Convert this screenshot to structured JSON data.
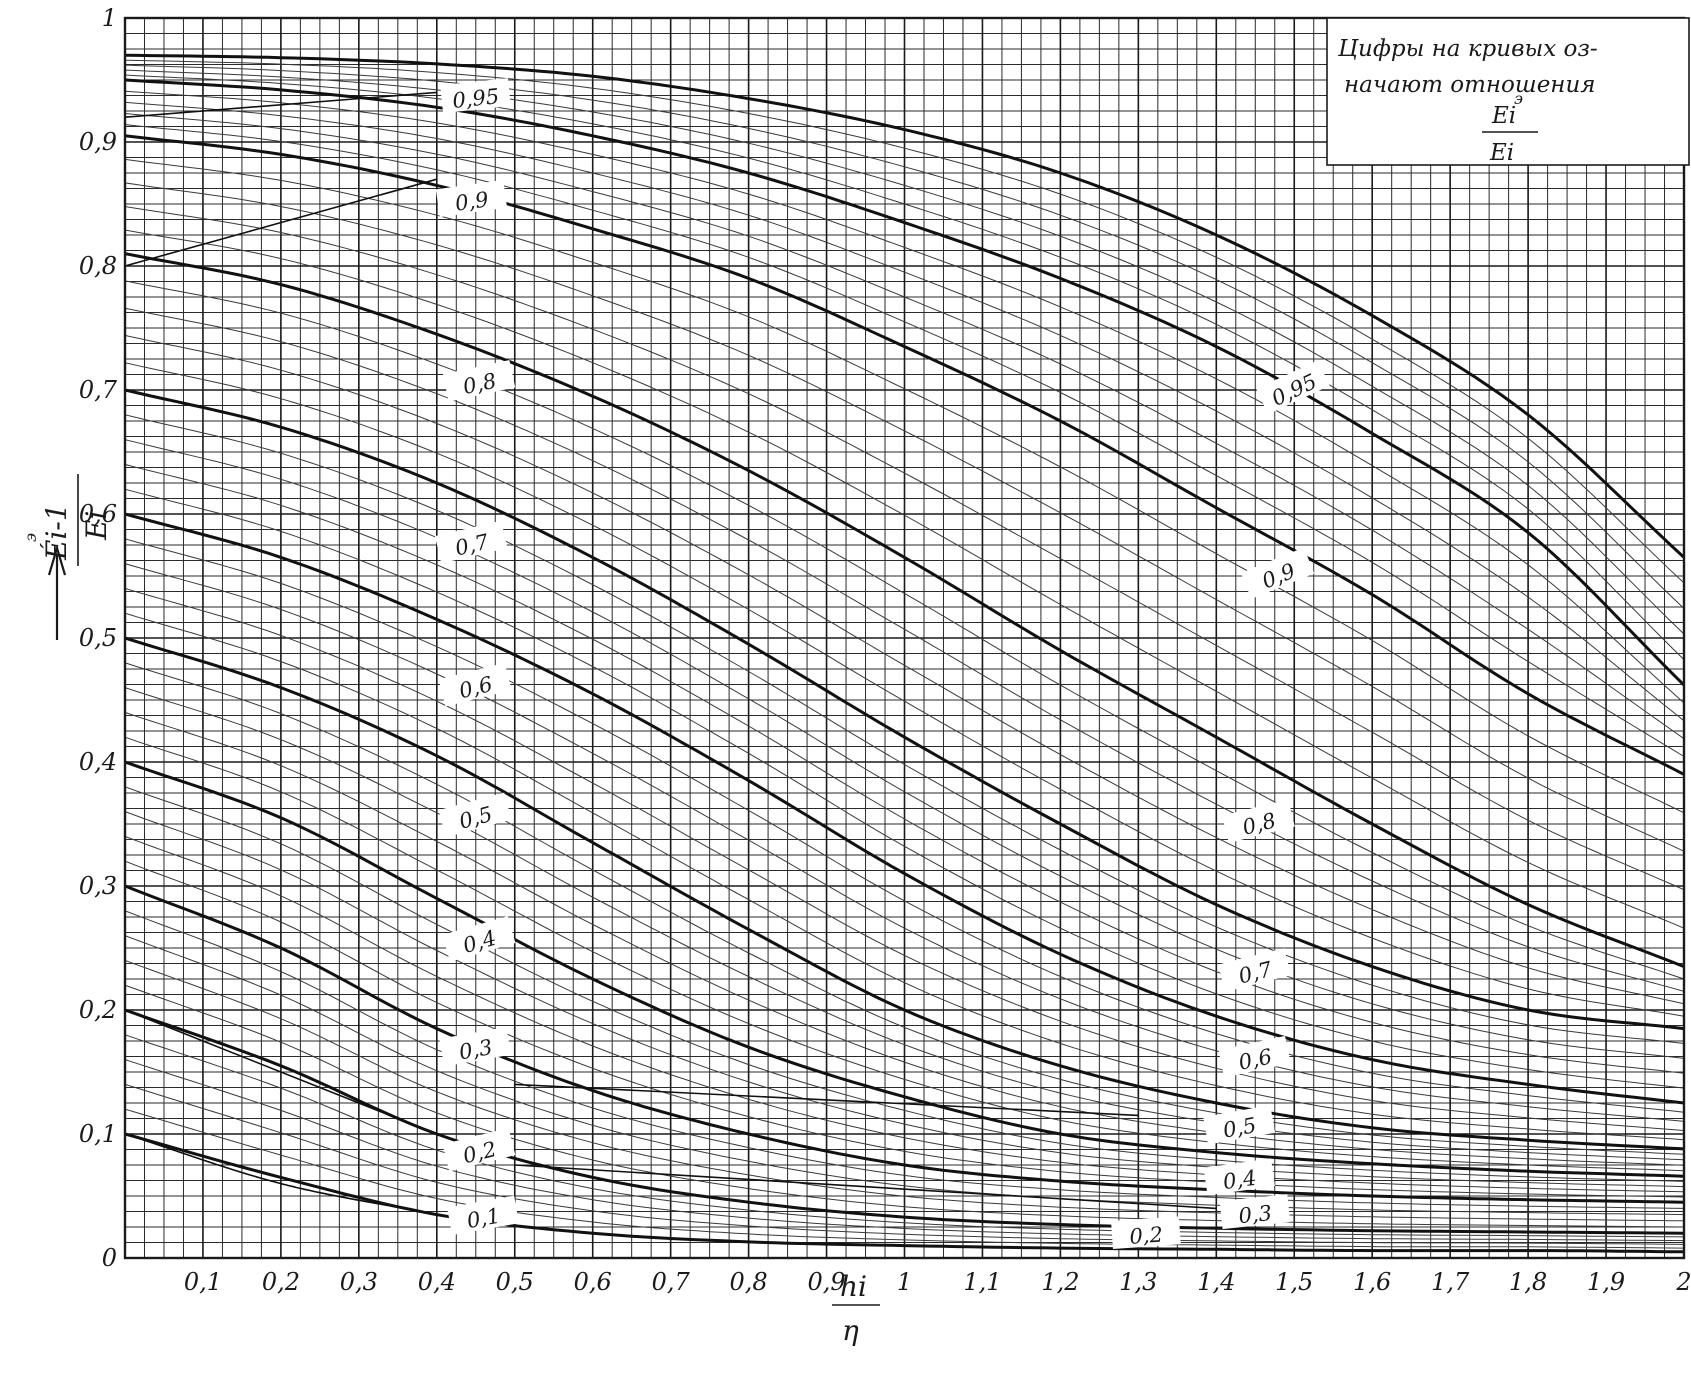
{
  "chart_data": {
    "type": "line",
    "xlabel": {
      "num": "hi",
      "den": "η"
    },
    "ylabel": {
      "num": "Éi-1",
      "den": "Ei",
      "sup": "э"
    },
    "xlim": [
      0,
      2
    ],
    "ylim": [
      0,
      1
    ],
    "grid": true,
    "legend_position": "top-right",
    "legend_lines": [
      "Цифры на кривых оз-",
      "начают  отношения"
    ],
    "legend_fraction": {
      "num": "Ei",
      "den": "Ei",
      "sup": "э"
    },
    "x_ticks": [
      {
        "v": 0.1,
        "t": "0,1"
      },
      {
        "v": 0.2,
        "t": "0,2"
      },
      {
        "v": 0.3,
        "t": "0,3"
      },
      {
        "v": 0.4,
        "t": "0,4"
      },
      {
        "v": 0.5,
        "t": "0,5"
      },
      {
        "v": 0.6,
        "t": "0,6"
      },
      {
        "v": 0.7,
        "t": "0,7"
      },
      {
        "v": 0.8,
        "t": "0,8"
      },
      {
        "v": 0.9,
        "t": "0,9"
      },
      {
        "v": 1.0,
        "t": "1"
      },
      {
        "v": 1.1,
        "t": "1,1"
      },
      {
        "v": 1.2,
        "t": "1,2"
      },
      {
        "v": 1.3,
        "t": "1,3"
      },
      {
        "v": 1.4,
        "t": "1,4"
      },
      {
        "v": 1.5,
        "t": "1,5"
      },
      {
        "v": 1.6,
        "t": "1,6"
      },
      {
        "v": 1.7,
        "t": "1,7"
      },
      {
        "v": 1.8,
        "t": "1,8"
      },
      {
        "v": 1.9,
        "t": "1,9"
      },
      {
        "v": 2.0,
        "t": "2"
      }
    ],
    "y_ticks": [
      {
        "v": 0,
        "t": "0"
      },
      {
        "v": 0.1,
        "t": "0,1"
      },
      {
        "v": 0.2,
        "t": "0,2"
      },
      {
        "v": 0.3,
        "t": "0,3"
      },
      {
        "v": 0.4,
        "t": "0,4"
      },
      {
        "v": 0.5,
        "t": "0,5"
      },
      {
        "v": 0.6,
        "t": "0,6"
      },
      {
        "v": 0.7,
        "t": "0,7"
      },
      {
        "v": 0.8,
        "t": "0,8"
      },
      {
        "v": 0.9,
        "t": "0,9"
      },
      {
        "v": 1.0,
        "t": "1"
      }
    ],
    "series": [
      {
        "name": "0,95",
        "family": "A",
        "x": [
          0,
          0.2,
          0.4,
          0.6,
          0.8,
          1.0,
          1.2,
          1.4,
          1.6,
          1.8,
          2.0
        ],
        "y": [
          0.97,
          0.968,
          0.963,
          0.953,
          0.935,
          0.91,
          0.875,
          0.825,
          0.76,
          0.68,
          0.565
        ]
      },
      {
        "name": "0,95",
        "family": "A",
        "x": [
          0,
          0.2,
          0.4,
          0.6,
          0.8,
          1.0,
          1.2,
          1.4,
          1.6,
          1.8,
          2.0
        ],
        "y": [
          0.95,
          0.942,
          0.928,
          0.905,
          0.875,
          0.835,
          0.79,
          0.735,
          0.665,
          0.585,
          0.462
        ]
      },
      {
        "name": "0,9",
        "family": "A",
        "x": [
          0,
          0.2,
          0.4,
          0.6,
          0.8,
          1.0,
          1.2,
          1.4,
          1.6,
          1.8,
          2.0
        ],
        "y": [
          0.905,
          0.89,
          0.865,
          0.83,
          0.79,
          0.735,
          0.675,
          0.605,
          0.535,
          0.455,
          0.39
        ]
      },
      {
        "name": "0,8",
        "family": "A",
        "x": [
          0,
          0.2,
          0.4,
          0.6,
          0.8,
          1.0,
          1.2,
          1.4,
          1.6,
          1.8,
          2.0
        ],
        "y": [
          0.81,
          0.785,
          0.745,
          0.695,
          0.635,
          0.565,
          0.49,
          0.42,
          0.35,
          0.285,
          0.235
        ]
      },
      {
        "name": "0,7",
        "family": "A",
        "x": [
          0,
          0.2,
          0.4,
          0.6,
          0.8,
          1.0,
          1.2,
          1.4,
          1.6,
          1.8,
          2.0
        ],
        "y": [
          0.7,
          0.67,
          0.625,
          0.565,
          0.495,
          0.42,
          0.35,
          0.285,
          0.235,
          0.2,
          0.185
        ]
      },
      {
        "name": "0,6",
        "family": "A",
        "x": [
          0,
          0.2,
          0.4,
          0.6,
          0.8,
          1.0,
          1.2,
          1.4,
          1.6,
          1.8,
          2.0
        ],
        "y": [
          0.6,
          0.565,
          0.515,
          0.455,
          0.385,
          0.31,
          0.245,
          0.195,
          0.16,
          0.14,
          0.125
        ]
      },
      {
        "name": "0,5",
        "family": "A",
        "x": [
          0,
          0.2,
          0.4,
          0.6,
          0.8,
          1.0,
          1.2,
          1.4,
          1.6,
          1.8,
          2.0
        ],
        "y": [
          0.5,
          0.46,
          0.405,
          0.335,
          0.265,
          0.2,
          0.155,
          0.125,
          0.105,
          0.095,
          0.088
        ]
      },
      {
        "name": "0,4",
        "family": "A",
        "x": [
          0,
          0.2,
          0.4,
          0.6,
          0.8,
          1.0,
          1.2,
          1.4,
          1.6,
          1.8,
          2.0
        ],
        "y": [
          0.4,
          0.355,
          0.29,
          0.225,
          0.17,
          0.13,
          0.1,
          0.085,
          0.076,
          0.07,
          0.066
        ]
      },
      {
        "name": "0,3",
        "family": "A",
        "x": [
          0,
          0.2,
          0.4,
          0.6,
          0.8,
          1.0,
          1.2,
          1.4,
          1.6,
          1.8,
          2.0
        ],
        "y": [
          0.3,
          0.25,
          0.185,
          0.135,
          0.1,
          0.075,
          0.062,
          0.055,
          0.05,
          0.047,
          0.045
        ]
      },
      {
        "name": "0,2",
        "family": "A",
        "x": [
          0,
          0.2,
          0.4,
          0.6,
          0.8,
          1.0,
          1.2,
          1.4,
          1.6,
          1.8,
          2.0
        ],
        "y": [
          0.2,
          0.155,
          0.1,
          0.065,
          0.045,
          0.033,
          0.027,
          0.024,
          0.022,
          0.021,
          0.02
        ]
      },
      {
        "name": "0,1",
        "family": "A",
        "x": [
          0,
          0.2,
          0.4,
          0.6,
          0.8,
          1.0,
          1.2,
          1.4,
          1.6,
          1.8,
          2.0
        ],
        "y": [
          0.1,
          0.065,
          0.035,
          0.02,
          0.013,
          0.01,
          0.008,
          0.007,
          0.006,
          0.006,
          0.005
        ]
      },
      {
        "name": "",
        "family": "B",
        "x": [
          0,
          0.4
        ],
        "y": [
          0.2,
          0.1
        ]
      },
      {
        "name": "",
        "family": "B",
        "x": [
          0,
          0.2,
          0.4
        ],
        "y": [
          0.1,
          0.06,
          0.035
        ]
      },
      {
        "name": "",
        "family": "B",
        "x": [
          0,
          0.4
        ],
        "y": [
          0.8,
          0.87
        ]
      },
      {
        "name": "",
        "family": "B",
        "x": [
          0,
          0.4
        ],
        "y": [
          0.92,
          0.94
        ]
      },
      {
        "name": "",
        "family": "B",
        "x": [
          0.5,
          1.3
        ],
        "y": [
          0.14,
          0.115
        ]
      },
      {
        "name": "",
        "family": "B",
        "x": [
          0.5,
          1.4
        ],
        "y": [
          0.075,
          0.04
        ]
      }
    ],
    "curve_labels": [
      {
        "text": "0,95",
        "x": 0.45,
        "y": 0.935,
        "rot": -6
      },
      {
        "text": "0,9",
        "x": 0.445,
        "y": 0.852,
        "rot": -8
      },
      {
        "text": "0,8",
        "x": 0.455,
        "y": 0.705,
        "rot": -12
      },
      {
        "text": "0,7",
        "x": 0.445,
        "y": 0.575,
        "rot": -13
      },
      {
        "text": "0,6",
        "x": 0.45,
        "y": 0.46,
        "rot": -14
      },
      {
        "text": "0,5",
        "x": 0.45,
        "y": 0.355,
        "rot": -15
      },
      {
        "text": "0,4",
        "x": 0.455,
        "y": 0.255,
        "rot": -16
      },
      {
        "text": "0,3",
        "x": 0.45,
        "y": 0.168,
        "rot": -10
      },
      {
        "text": "0,2",
        "x": 0.455,
        "y": 0.085,
        "rot": -14
      },
      {
        "text": "0,1",
        "x": 0.46,
        "y": 0.032,
        "rot": -10
      },
      {
        "text": "0,95",
        "x": 1.5,
        "y": 0.7,
        "rot": -25
      },
      {
        "text": "0,9",
        "x": 1.48,
        "y": 0.55,
        "rot": -22
      },
      {
        "text": "0,8",
        "x": 1.455,
        "y": 0.35,
        "rot": -14
      },
      {
        "text": "0,7",
        "x": 1.45,
        "y": 0.23,
        "rot": -14
      },
      {
        "text": "0,6",
        "x": 1.45,
        "y": 0.16,
        "rot": -12
      },
      {
        "text": "0,5",
        "x": 1.43,
        "y": 0.105,
        "rot": -10
      },
      {
        "text": "0,4",
        "x": 1.43,
        "y": 0.063,
        "rot": -8
      },
      {
        "text": "0,3",
        "x": 1.45,
        "y": 0.035,
        "rot": -6
      },
      {
        "text": "0,2",
        "x": 1.31,
        "y": 0.018,
        "rot": -4
      }
    ]
  }
}
